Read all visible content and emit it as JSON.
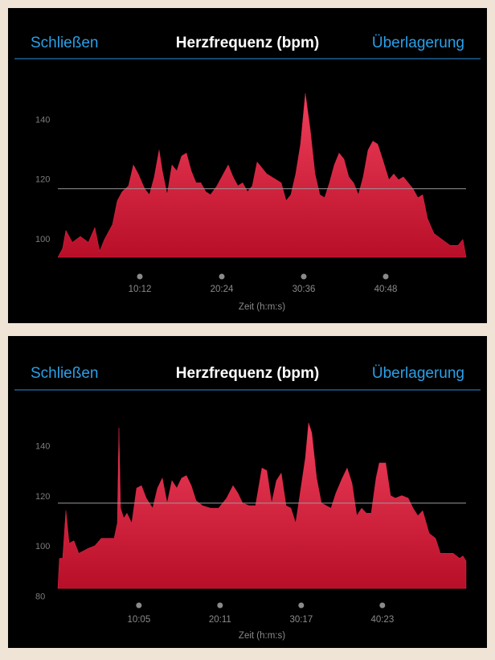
{
  "panels": [
    {
      "close": "Schließen",
      "title": "Herzfrequenz (bpm)",
      "overlay": "Überlagerung"
    },
    {
      "close": "Schließen",
      "title": "Herzfrequenz (bpm)",
      "overlay": "Überlagerung"
    }
  ],
  "chart_data": [
    {
      "type": "area",
      "x_label": "Zeit (h:m:s)",
      "color": "#e0294a",
      "xlim": [
        0,
        3048
      ],
      "ylim": [
        97,
        158
      ],
      "xticks": [
        {
          "value": 612,
          "label": "10:12"
        },
        {
          "value": 1224,
          "label": "20:24"
        },
        {
          "value": 1836,
          "label": "30:36"
        },
        {
          "value": 2448,
          "label": "40:48"
        }
      ],
      "yticks": [
        100,
        120,
        140
      ],
      "reference_line": 120,
      "x": [
        0,
        36,
        60,
        108,
        168,
        228,
        276,
        312,
        348,
        408,
        444,
        480,
        528,
        564,
        600,
        648,
        684,
        720,
        756,
        780,
        816,
        852,
        888,
        924,
        960,
        996,
        1032,
        1068,
        1104,
        1140,
        1188,
        1236,
        1272,
        1308,
        1344,
        1380,
        1416,
        1452,
        1488,
        1524,
        1560,
        1596,
        1632,
        1668,
        1704,
        1740,
        1776,
        1812,
        1848,
        1884,
        1920,
        1956,
        1992,
        2028,
        2064,
        2100,
        2136,
        2172,
        2208,
        2244,
        2280,
        2316,
        2352,
        2388,
        2424,
        2472,
        2508,
        2544,
        2580,
        2616,
        2652,
        2688,
        2724,
        2760,
        2808,
        2868,
        2928,
        2988,
        3024,
        3048
      ],
      "values": [
        97,
        100,
        106,
        102,
        104,
        102,
        107,
        99,
        103,
        108,
        116,
        119,
        121,
        128,
        125,
        120,
        118,
        124,
        133,
        126,
        118,
        128,
        126,
        131,
        132,
        126,
        122,
        122,
        119,
        118,
        121,
        125,
        128,
        124,
        121,
        122,
        119,
        121,
        129,
        127,
        125,
        124,
        123,
        122,
        116,
        118,
        125,
        135,
        152,
        140,
        125,
        118,
        117,
        122,
        128,
        132,
        130,
        124,
        122,
        118,
        124,
        133,
        136,
        135,
        130,
        123,
        125,
        123,
        124,
        122,
        120,
        117,
        118,
        110,
        105,
        103,
        101,
        101,
        103,
        97
      ]
    },
    {
      "type": "area",
      "x_label": "Zeit (h:m:s)",
      "color": "#e0294a",
      "xlim": [
        0,
        3048
      ],
      "ylim": [
        86,
        160
      ],
      "xticks": [
        {
          "value": 605,
          "label": "10:05"
        },
        {
          "value": 1211,
          "label": "20:11"
        },
        {
          "value": 1817,
          "label": "30:17"
        },
        {
          "value": 2423,
          "label": "40:23"
        }
      ],
      "yticks": [
        80,
        100,
        120,
        140
      ],
      "reference_line": 120,
      "x": [
        0,
        12,
        36,
        60,
        84,
        120,
        156,
        192,
        228,
        276,
        324,
        372,
        420,
        444,
        456,
        468,
        492,
        516,
        552,
        588,
        624,
        660,
        708,
        744,
        780,
        816,
        852,
        888,
        924,
        960,
        996,
        1032,
        1080,
        1140,
        1200,
        1260,
        1308,
        1344,
        1380,
        1428,
        1476,
        1524,
        1560,
        1596,
        1632,
        1668,
        1704,
        1740,
        1776,
        1812,
        1848,
        1872,
        1896,
        1932,
        1968,
        2004,
        2040,
        2076,
        2124,
        2160,
        2196,
        2232,
        2268,
        2304,
        2340,
        2376,
        2400,
        2448,
        2484,
        2520,
        2568,
        2616,
        2652,
        2688,
        2724,
        2772,
        2820,
        2856,
        2904,
        2952,
        3000,
        3024,
        3048
      ],
      "values": [
        86,
        98,
        98,
        117,
        104,
        105,
        100,
        101,
        102,
        103,
        106,
        106,
        106,
        112,
        150,
        118,
        114,
        116,
        112,
        126,
        127,
        122,
        118,
        126,
        130,
        120,
        129,
        126,
        130,
        131,
        127,
        121,
        119,
        118,
        118,
        122,
        127,
        124,
        120,
        119,
        119,
        134,
        133,
        120,
        129,
        132,
        119,
        118,
        112,
        125,
        138,
        152,
        148,
        130,
        120,
        119,
        118,
        124,
        130,
        134,
        128,
        115,
        118,
        116,
        116,
        130,
        136,
        136,
        123,
        122,
        123,
        122,
        118,
        115,
        117,
        108,
        106,
        100,
        100,
        100,
        98,
        99,
        97
      ]
    }
  ]
}
